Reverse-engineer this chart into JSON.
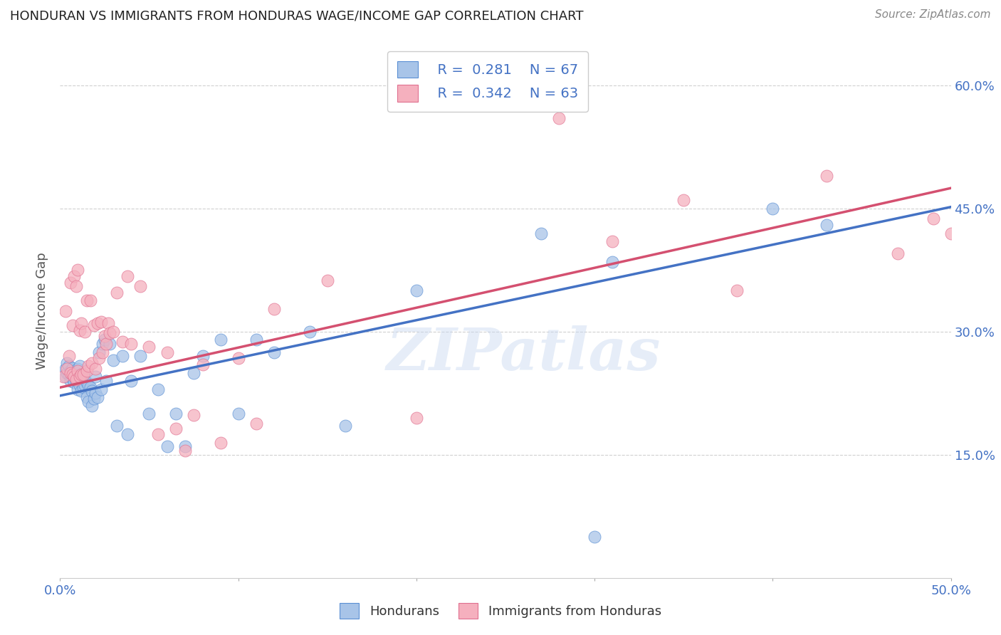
{
  "title": "HONDURAN VS IMMIGRANTS FROM HONDURAS WAGE/INCOME GAP CORRELATION CHART",
  "source": "Source: ZipAtlas.com",
  "ylabel": "Wage/Income Gap",
  "xlim": [
    0.0,
    0.5
  ],
  "ylim": [
    0.0,
    0.65
  ],
  "xticks": [
    0.0,
    0.1,
    0.2,
    0.3,
    0.4,
    0.5
  ],
  "yticks": [
    0.15,
    0.3,
    0.45,
    0.6
  ],
  "xtick_labels": [
    "0.0%",
    "",
    "",
    "",
    "",
    "50.0%"
  ],
  "ytick_labels_right": [
    "15.0%",
    "30.0%",
    "45.0%",
    "60.0%"
  ],
  "legend_labels": [
    "Hondurans",
    "Immigrants from Honduras"
  ],
  "blue_R": "0.281",
  "blue_N": "67",
  "pink_R": "0.342",
  "pink_N": "63",
  "blue_color": "#a8c4e8",
  "pink_color": "#f5b0be",
  "blue_edge_color": "#5b8fd4",
  "pink_edge_color": "#e07090",
  "blue_line_color": "#4472c4",
  "pink_line_color": "#d45070",
  "watermark": "ZIPatlas",
  "blue_line_x0": 0.0,
  "blue_line_y0": 0.222,
  "blue_line_x1": 0.5,
  "blue_line_y1": 0.452,
  "pink_line_x0": 0.0,
  "pink_line_y0": 0.232,
  "pink_line_x1": 0.5,
  "pink_line_y1": 0.475,
  "blue_scatter_x": [
    0.003,
    0.003,
    0.004,
    0.004,
    0.005,
    0.005,
    0.006,
    0.006,
    0.007,
    0.007,
    0.008,
    0.008,
    0.009,
    0.009,
    0.01,
    0.01,
    0.01,
    0.011,
    0.011,
    0.011,
    0.012,
    0.012,
    0.013,
    0.013,
    0.014,
    0.015,
    0.015,
    0.016,
    0.016,
    0.017,
    0.018,
    0.018,
    0.019,
    0.02,
    0.02,
    0.021,
    0.022,
    0.023,
    0.024,
    0.025,
    0.026,
    0.028,
    0.03,
    0.032,
    0.035,
    0.038,
    0.04,
    0.045,
    0.05,
    0.055,
    0.06,
    0.065,
    0.07,
    0.075,
    0.08,
    0.09,
    0.1,
    0.11,
    0.12,
    0.14,
    0.16,
    0.2,
    0.27,
    0.3,
    0.31,
    0.4,
    0.43
  ],
  "blue_scatter_y": [
    0.245,
    0.255,
    0.25,
    0.262,
    0.248,
    0.258,
    0.24,
    0.252,
    0.243,
    0.256,
    0.238,
    0.248,
    0.24,
    0.25,
    0.23,
    0.242,
    0.255,
    0.235,
    0.245,
    0.258,
    0.228,
    0.242,
    0.232,
    0.248,
    0.235,
    0.22,
    0.238,
    0.215,
    0.235,
    0.232,
    0.21,
    0.228,
    0.218,
    0.225,
    0.245,
    0.22,
    0.275,
    0.23,
    0.285,
    0.29,
    0.24,
    0.285,
    0.265,
    0.185,
    0.27,
    0.175,
    0.24,
    0.27,
    0.2,
    0.23,
    0.16,
    0.2,
    0.16,
    0.25,
    0.27,
    0.29,
    0.2,
    0.29,
    0.275,
    0.3,
    0.185,
    0.35,
    0.42,
    0.05,
    0.385,
    0.45,
    0.43
  ],
  "pink_scatter_x": [
    0.002,
    0.003,
    0.004,
    0.005,
    0.006,
    0.006,
    0.007,
    0.007,
    0.008,
    0.008,
    0.009,
    0.009,
    0.01,
    0.01,
    0.011,
    0.011,
    0.012,
    0.012,
    0.013,
    0.014,
    0.015,
    0.015,
    0.016,
    0.017,
    0.018,
    0.019,
    0.02,
    0.021,
    0.022,
    0.023,
    0.024,
    0.025,
    0.026,
    0.027,
    0.028,
    0.03,
    0.032,
    0.035,
    0.038,
    0.04,
    0.045,
    0.05,
    0.055,
    0.06,
    0.065,
    0.07,
    0.075,
    0.08,
    0.09,
    0.1,
    0.11,
    0.12,
    0.15,
    0.2,
    0.28,
    0.31,
    0.35,
    0.38,
    0.43,
    0.47,
    0.49,
    0.5,
    0.51
  ],
  "pink_scatter_y": [
    0.245,
    0.325,
    0.255,
    0.27,
    0.25,
    0.36,
    0.248,
    0.308,
    0.245,
    0.368,
    0.242,
    0.355,
    0.252,
    0.375,
    0.245,
    0.302,
    0.248,
    0.31,
    0.248,
    0.3,
    0.252,
    0.338,
    0.258,
    0.338,
    0.262,
    0.308,
    0.255,
    0.31,
    0.268,
    0.312,
    0.275,
    0.295,
    0.285,
    0.31,
    0.298,
    0.3,
    0.348,
    0.288,
    0.368,
    0.285,
    0.355,
    0.282,
    0.175,
    0.275,
    0.182,
    0.155,
    0.198,
    0.26,
    0.165,
    0.268,
    0.188,
    0.328,
    0.362,
    0.195,
    0.56,
    0.41,
    0.46,
    0.35,
    0.49,
    0.395,
    0.438,
    0.42,
    0.46
  ]
}
